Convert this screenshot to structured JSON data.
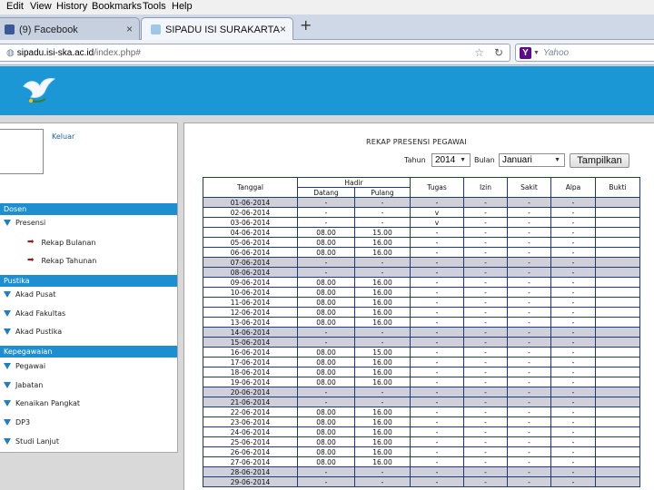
{
  "browser": {
    "menu": [
      "Edit",
      "View",
      "History",
      "Bookmarks",
      "Tools",
      "Help"
    ],
    "tabs": [
      {
        "label": "(9) Facebook",
        "close": "×"
      },
      {
        "label": "SIPADU ISI SURAKARTA",
        "close": "×"
      }
    ],
    "new_tab": "+",
    "url_host": "sipadu.isi-ska.ac.id",
    "url_path": "/index.php#",
    "search_placeholder": "Yahoo",
    "search_engine_letter": "Y"
  },
  "sidebar": {
    "logout": "Keluar",
    "sections": [
      {
        "title": "Dosen"
      },
      {
        "title": "Pustika"
      },
      {
        "title": "Kepegawaian"
      }
    ],
    "items": {
      "presensi": "Presensi",
      "rekap_bulanan": "Rekap Bulanan",
      "rekap_tahunan": "Rekap Tahunan",
      "akad_pusat": "Akad Pusat",
      "akad_fakultas": "Akad Fakultas",
      "akad_pustika": "Akad Pustika",
      "pegawai": "Pegawai",
      "jabatan": "Jabatan",
      "kenaikan_pangkat": "Kenaikan Pangkat",
      "dp3": "DP3",
      "studi_lanjut": "Studi Lanjut"
    }
  },
  "report": {
    "title": "REKAP PRESENSI PEGAWAI",
    "year_label": "Tahun",
    "year_value": "2014",
    "month_label": "Bulan",
    "month_value": "Januari",
    "submit_label": "Tampilkan",
    "columns": {
      "tanggal": "Tanggal",
      "hadir": "Hadir",
      "datang": "Datang",
      "pulang": "Pulang",
      "tugas": "Tugas",
      "izin": "Izin",
      "sakit": "Sakit",
      "alpa": "Alpa",
      "bukti": "Bukti"
    },
    "rows": [
      {
        "tanggal": "01-06-2014",
        "datang": "-",
        "pulang": "-",
        "tugas": "-",
        "izin": "-",
        "sakit": "-",
        "alpa": "-",
        "bukti": "",
        "weekend": true
      },
      {
        "tanggal": "02-06-2014",
        "datang": "-",
        "pulang": "-",
        "tugas": "v",
        "izin": "-",
        "sakit": "-",
        "alpa": "-",
        "bukti": "",
        "weekend": false
      },
      {
        "tanggal": "03-06-2014",
        "datang": "-",
        "pulang": "-",
        "tugas": "v",
        "izin": "-",
        "sakit": "-",
        "alpa": "-",
        "bukti": "",
        "weekend": false
      },
      {
        "tanggal": "04-06-2014",
        "datang": "08.00",
        "pulang": "15.00",
        "tugas": "-",
        "izin": "-",
        "sakit": "-",
        "alpa": "-",
        "bukti": "",
        "weekend": false
      },
      {
        "tanggal": "05-06-2014",
        "datang": "08.00",
        "pulang": "16.00",
        "tugas": "-",
        "izin": "-",
        "sakit": "-",
        "alpa": "-",
        "bukti": "",
        "weekend": false
      },
      {
        "tanggal": "06-06-2014",
        "datang": "08.00",
        "pulang": "16.00",
        "tugas": "-",
        "izin": "-",
        "sakit": "-",
        "alpa": "-",
        "bukti": "",
        "weekend": false
      },
      {
        "tanggal": "07-06-2014",
        "datang": "-",
        "pulang": "-",
        "tugas": "-",
        "izin": "-",
        "sakit": "-",
        "alpa": "-",
        "bukti": "",
        "weekend": true
      },
      {
        "tanggal": "08-06-2014",
        "datang": "-",
        "pulang": "-",
        "tugas": "-",
        "izin": "-",
        "sakit": "-",
        "alpa": "-",
        "bukti": "",
        "weekend": true
      },
      {
        "tanggal": "09-06-2014",
        "datang": "08.00",
        "pulang": "16.00",
        "tugas": "-",
        "izin": "-",
        "sakit": "-",
        "alpa": "-",
        "bukti": "",
        "weekend": false
      },
      {
        "tanggal": "10-06-2014",
        "datang": "08.00",
        "pulang": "16.00",
        "tugas": "-",
        "izin": "-",
        "sakit": "-",
        "alpa": "-",
        "bukti": "",
        "weekend": false
      },
      {
        "tanggal": "11-06-2014",
        "datang": "08.00",
        "pulang": "16.00",
        "tugas": "-",
        "izin": "-",
        "sakit": "-",
        "alpa": "-",
        "bukti": "",
        "weekend": false
      },
      {
        "tanggal": "12-06-2014",
        "datang": "08.00",
        "pulang": "16.00",
        "tugas": "-",
        "izin": "-",
        "sakit": "-",
        "alpa": "-",
        "bukti": "",
        "weekend": false
      },
      {
        "tanggal": "13-06-2014",
        "datang": "08.00",
        "pulang": "16.00",
        "tugas": "-",
        "izin": "-",
        "sakit": "-",
        "alpa": "-",
        "bukti": "",
        "weekend": false
      },
      {
        "tanggal": "14-06-2014",
        "datang": "-",
        "pulang": "-",
        "tugas": "-",
        "izin": "-",
        "sakit": "-",
        "alpa": "-",
        "bukti": "",
        "weekend": true
      },
      {
        "tanggal": "15-06-2014",
        "datang": "-",
        "pulang": "-",
        "tugas": "-",
        "izin": "-",
        "sakit": "-",
        "alpa": "-",
        "bukti": "",
        "weekend": true
      },
      {
        "tanggal": "16-06-2014",
        "datang": "08.00",
        "pulang": "15.00",
        "tugas": "-",
        "izin": "-",
        "sakit": "-",
        "alpa": "-",
        "bukti": "",
        "weekend": false
      },
      {
        "tanggal": "17-06-2014",
        "datang": "08.00",
        "pulang": "16.00",
        "tugas": "-",
        "izin": "-",
        "sakit": "-",
        "alpa": "-",
        "bukti": "",
        "weekend": false
      },
      {
        "tanggal": "18-06-2014",
        "datang": "08.00",
        "pulang": "16.00",
        "tugas": "-",
        "izin": "-",
        "sakit": "-",
        "alpa": "-",
        "bukti": "",
        "weekend": false
      },
      {
        "tanggal": "19-06-2014",
        "datang": "08.00",
        "pulang": "16.00",
        "tugas": "-",
        "izin": "-",
        "sakit": "-",
        "alpa": "-",
        "bukti": "",
        "weekend": false
      },
      {
        "tanggal": "20-06-2014",
        "datang": "-",
        "pulang": "-",
        "tugas": "-",
        "izin": "-",
        "sakit": "-",
        "alpa": "-",
        "bukti": "",
        "weekend": true
      },
      {
        "tanggal": "21-06-2014",
        "datang": "-",
        "pulang": "-",
        "tugas": "-",
        "izin": "-",
        "sakit": "-",
        "alpa": "-",
        "bukti": "",
        "weekend": true
      },
      {
        "tanggal": "22-06-2014",
        "datang": "08.00",
        "pulang": "16.00",
        "tugas": "-",
        "izin": "-",
        "sakit": "-",
        "alpa": "-",
        "bukti": "",
        "weekend": false
      },
      {
        "tanggal": "23-06-2014",
        "datang": "08.00",
        "pulang": "16.00",
        "tugas": "-",
        "izin": "-",
        "sakit": "-",
        "alpa": "-",
        "bukti": "",
        "weekend": false
      },
      {
        "tanggal": "24-06-2014",
        "datang": "08.00",
        "pulang": "16.00",
        "tugas": "-",
        "izin": "-",
        "sakit": "-",
        "alpa": "-",
        "bukti": "",
        "weekend": false
      },
      {
        "tanggal": "25-06-2014",
        "datang": "08.00",
        "pulang": "16.00",
        "tugas": "-",
        "izin": "-",
        "sakit": "-",
        "alpa": "-",
        "bukti": "",
        "weekend": false
      },
      {
        "tanggal": "26-06-2014",
        "datang": "08.00",
        "pulang": "16.00",
        "tugas": "-",
        "izin": "-",
        "sakit": "-",
        "alpa": "-",
        "bukti": "",
        "weekend": false
      },
      {
        "tanggal": "27-06-2014",
        "datang": "08.00",
        "pulang": "16.00",
        "tugas": "-",
        "izin": "-",
        "sakit": "-",
        "alpa": "-",
        "bukti": "",
        "weekend": false
      },
      {
        "tanggal": "28-06-2014",
        "datang": "-",
        "pulang": "-",
        "tugas": "-",
        "izin": "-",
        "sakit": "-",
        "alpa": "-",
        "bukti": "",
        "weekend": true
      },
      {
        "tanggal": "29-06-2014",
        "datang": "-",
        "pulang": "-",
        "tugas": "-",
        "izin": "-",
        "sakit": "-",
        "alpa": "-",
        "bukti": "",
        "weekend": true
      }
    ]
  },
  "colors": {
    "header_blue": "#1a97d4",
    "section_blue": "#1d8fd0",
    "weekend_row": "#cfd0da",
    "table_border": "#1c3a7a"
  }
}
